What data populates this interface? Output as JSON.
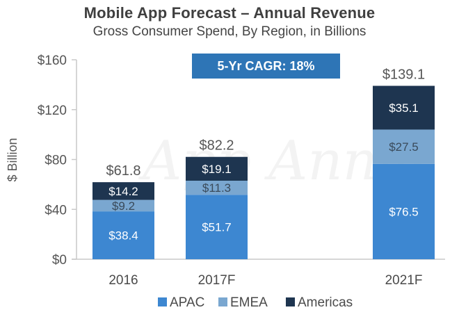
{
  "chart_data": {
    "type": "bar",
    "stacked": true,
    "title": "Mobile App Forecast – Annual Revenue",
    "subtitle": "Gross Consumer Spend, By Region, in Billions",
    "annotation": "5-Yr CAGR: 18%",
    "watermark": "App Annie",
    "xlabel": "",
    "ylabel": "$ Billion",
    "ylim": [
      0,
      160
    ],
    "yticks": [
      0,
      40,
      80,
      120,
      160
    ],
    "ytick_labels": [
      "$0",
      "$40",
      "$80",
      "$120",
      "$160"
    ],
    "grid": false,
    "legend_position": "bottom",
    "categories": [
      "2016",
      "2017F",
      "2021F"
    ],
    "series": [
      {
        "name": "APAC",
        "color": "#3d87d1",
        "label_color": "#ffffff",
        "values": [
          38.4,
          51.7,
          76.5
        ],
        "labels": [
          "$38.4",
          "$51.7",
          "$76.5"
        ]
      },
      {
        "name": "EMEA",
        "color": "#7aa7d0",
        "label_color": "#3a4a5a",
        "values": [
          9.2,
          11.3,
          27.5
        ],
        "labels": [
          "$9.2",
          "$11.3",
          "$27.5"
        ]
      },
      {
        "name": "Americas",
        "color": "#1e3550",
        "label_color": "#ffffff",
        "values": [
          14.2,
          19.1,
          35.1
        ],
        "labels": [
          "$14.2",
          "$19.1",
          "$35.1"
        ]
      }
    ],
    "totals": [
      61.8,
      82.2,
      139.1
    ],
    "total_labels": [
      "$61.8",
      "$82.2",
      "$139.1"
    ]
  },
  "colors": {
    "cagr_box": "#2e75b6",
    "axis": "#c8c8c8"
  }
}
